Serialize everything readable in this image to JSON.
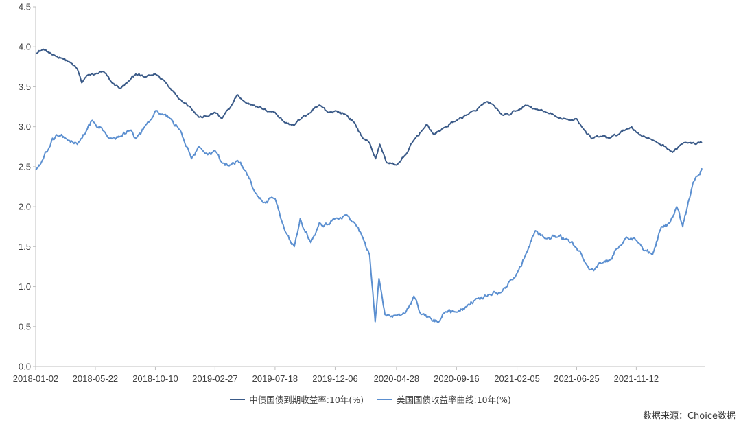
{
  "chart_data": {
    "type": "line",
    "title": "",
    "xlabel": "",
    "ylabel": "",
    "x_tick_labels": [
      "2018-01-02",
      "2018-05-22",
      "2018-10-10",
      "2019-02-27",
      "2019-07-18",
      "2019-12-06",
      "2020-04-28",
      "2020-09-16",
      "2021-02-05",
      "2021-06-25",
      "2021-11-12"
    ],
    "y_tick_labels": [
      "0.0",
      "0.5",
      "1.0",
      "1.5",
      "2.0",
      "2.5",
      "3.0",
      "3.5",
      "4.0",
      "4.5"
    ],
    "ylim": [
      0,
      4.5
    ],
    "x_range": [
      "2018-01-02",
      "2022-04-15"
    ],
    "grid": false,
    "legend_position": "bottom",
    "series": [
      {
        "name": "中债国债到期收益率:10年(%)",
        "color": "#3a5a88",
        "points": [
          [
            "2018-01-02",
            3.92
          ],
          [
            "2018-01-20",
            3.97
          ],
          [
            "2018-02-10",
            3.9
          ],
          [
            "2018-03-05",
            3.86
          ],
          [
            "2018-03-25",
            3.8
          ],
          [
            "2018-04-10",
            3.72
          ],
          [
            "2018-04-20",
            3.55
          ],
          [
            "2018-05-05",
            3.65
          ],
          [
            "2018-05-22",
            3.66
          ],
          [
            "2018-06-10",
            3.69
          ],
          [
            "2018-06-30",
            3.55
          ],
          [
            "2018-07-20",
            3.48
          ],
          [
            "2018-08-05",
            3.55
          ],
          [
            "2018-08-25",
            3.66
          ],
          [
            "2018-09-15",
            3.62
          ],
          [
            "2018-10-10",
            3.66
          ],
          [
            "2018-10-30",
            3.58
          ],
          [
            "2018-11-20",
            3.45
          ],
          [
            "2018-12-10",
            3.33
          ],
          [
            "2018-12-31",
            3.25
          ],
          [
            "2019-01-20",
            3.12
          ],
          [
            "2019-02-10",
            3.13
          ],
          [
            "2019-02-27",
            3.18
          ],
          [
            "2019-03-15",
            3.1
          ],
          [
            "2019-04-05",
            3.25
          ],
          [
            "2019-04-20",
            3.4
          ],
          [
            "2019-05-10",
            3.3
          ],
          [
            "2019-05-30",
            3.27
          ],
          [
            "2019-06-20",
            3.22
          ],
          [
            "2019-07-18",
            3.18
          ],
          [
            "2019-08-10",
            3.05
          ],
          [
            "2019-09-01",
            3.02
          ],
          [
            "2019-09-20",
            3.12
          ],
          [
            "2019-10-10",
            3.18
          ],
          [
            "2019-10-30",
            3.27
          ],
          [
            "2019-11-20",
            3.18
          ],
          [
            "2019-12-06",
            3.2
          ],
          [
            "2020-01-01",
            3.15
          ],
          [
            "2020-01-20",
            3.05
          ],
          [
            "2020-02-10",
            2.85
          ],
          [
            "2020-02-25",
            2.8
          ],
          [
            "2020-03-10",
            2.6
          ],
          [
            "2020-03-20",
            2.78
          ],
          [
            "2020-04-05",
            2.55
          ],
          [
            "2020-04-28",
            2.52
          ],
          [
            "2020-05-20",
            2.65
          ],
          [
            "2020-06-10",
            2.85
          ],
          [
            "2020-07-01",
            2.98
          ],
          [
            "2020-07-10",
            3.02
          ],
          [
            "2020-07-25",
            2.9
          ],
          [
            "2020-08-15",
            2.98
          ],
          [
            "2020-09-16",
            3.08
          ],
          [
            "2020-10-10",
            3.15
          ],
          [
            "2020-11-01",
            3.2
          ],
          [
            "2020-11-20",
            3.3
          ],
          [
            "2020-12-10",
            3.28
          ],
          [
            "2020-12-31",
            3.15
          ],
          [
            "2021-01-20",
            3.15
          ],
          [
            "2021-02-05",
            3.2
          ],
          [
            "2021-02-25",
            3.27
          ],
          [
            "2021-03-20",
            3.22
          ],
          [
            "2021-04-15",
            3.18
          ],
          [
            "2021-05-10",
            3.12
          ],
          [
            "2021-05-30",
            3.1
          ],
          [
            "2021-06-10",
            3.08
          ],
          [
            "2021-06-25",
            3.1
          ],
          [
            "2021-07-10",
            2.98
          ],
          [
            "2021-07-30",
            2.85
          ],
          [
            "2021-08-20",
            2.88
          ],
          [
            "2021-09-10",
            2.86
          ],
          [
            "2021-09-30",
            2.9
          ],
          [
            "2021-10-20",
            2.97
          ],
          [
            "2021-11-01",
            3.0
          ],
          [
            "2021-11-12",
            2.93
          ],
          [
            "2021-12-01",
            2.88
          ],
          [
            "2021-12-25",
            2.82
          ],
          [
            "2022-01-20",
            2.75
          ],
          [
            "2022-02-05",
            2.68
          ],
          [
            "2022-02-25",
            2.78
          ],
          [
            "2022-03-15",
            2.8
          ],
          [
            "2022-04-01",
            2.78
          ],
          [
            "2022-04-15",
            2.8
          ]
        ]
      },
      {
        "name": "美国国债收益率曲线:10年(%)",
        "color": "#5b8fd0",
        "points": [
          [
            "2018-01-02",
            2.46
          ],
          [
            "2018-01-15",
            2.55
          ],
          [
            "2018-02-01",
            2.72
          ],
          [
            "2018-02-20",
            2.9
          ],
          [
            "2018-03-15",
            2.85
          ],
          [
            "2018-04-10",
            2.78
          ],
          [
            "2018-05-01",
            2.95
          ],
          [
            "2018-05-15",
            3.08
          ],
          [
            "2018-05-25",
            3.0
          ],
          [
            "2018-06-10",
            2.95
          ],
          [
            "2018-06-30",
            2.85
          ],
          [
            "2018-07-20",
            2.88
          ],
          [
            "2018-08-10",
            2.95
          ],
          [
            "2018-08-25",
            2.85
          ],
          [
            "2018-09-15",
            3.0
          ],
          [
            "2018-10-10",
            3.2
          ],
          [
            "2018-10-30",
            3.15
          ],
          [
            "2018-11-15",
            3.1
          ],
          [
            "2018-12-01",
            3.0
          ],
          [
            "2018-12-15",
            2.85
          ],
          [
            "2019-01-03",
            2.6
          ],
          [
            "2019-01-20",
            2.75
          ],
          [
            "2019-02-10",
            2.65
          ],
          [
            "2019-02-27",
            2.7
          ],
          [
            "2019-03-15",
            2.55
          ],
          [
            "2019-04-05",
            2.52
          ],
          [
            "2019-04-20",
            2.58
          ],
          [
            "2019-05-10",
            2.45
          ],
          [
            "2019-05-30",
            2.2
          ],
          [
            "2019-06-20",
            2.05
          ],
          [
            "2019-07-18",
            2.1
          ],
          [
            "2019-08-10",
            1.7
          ],
          [
            "2019-09-01",
            1.5
          ],
          [
            "2019-09-15",
            1.85
          ],
          [
            "2019-10-10",
            1.55
          ],
          [
            "2019-10-30",
            1.8
          ],
          [
            "2019-11-20",
            1.78
          ],
          [
            "2019-12-06",
            1.85
          ],
          [
            "2020-01-01",
            1.9
          ],
          [
            "2020-01-20",
            1.8
          ],
          [
            "2020-02-10",
            1.6
          ],
          [
            "2020-02-25",
            1.4
          ],
          [
            "2020-03-09",
            0.56
          ],
          [
            "2020-03-18",
            1.1
          ],
          [
            "2020-04-01",
            0.65
          ],
          [
            "2020-04-28",
            0.64
          ],
          [
            "2020-05-20",
            0.68
          ],
          [
            "2020-06-08",
            0.88
          ],
          [
            "2020-06-25",
            0.65
          ],
          [
            "2020-07-15",
            0.62
          ],
          [
            "2020-08-04",
            0.55
          ],
          [
            "2020-08-20",
            0.68
          ],
          [
            "2020-09-16",
            0.68
          ],
          [
            "2020-10-10",
            0.75
          ],
          [
            "2020-11-01",
            0.85
          ],
          [
            "2020-12-01",
            0.9
          ],
          [
            "2020-12-31",
            0.93
          ],
          [
            "2021-01-20",
            1.08
          ],
          [
            "2021-02-05",
            1.17
          ],
          [
            "2021-02-25",
            1.4
          ],
          [
            "2021-03-20",
            1.7
          ],
          [
            "2021-04-15",
            1.6
          ],
          [
            "2021-05-10",
            1.62
          ],
          [
            "2021-06-01",
            1.6
          ],
          [
            "2021-06-25",
            1.48
          ],
          [
            "2021-07-15",
            1.3
          ],
          [
            "2021-08-04",
            1.2
          ],
          [
            "2021-08-25",
            1.3
          ],
          [
            "2021-09-10",
            1.33
          ],
          [
            "2021-10-01",
            1.48
          ],
          [
            "2021-10-20",
            1.62
          ],
          [
            "2021-11-12",
            1.58
          ],
          [
            "2021-12-01",
            1.45
          ],
          [
            "2021-12-20",
            1.4
          ],
          [
            "2022-01-10",
            1.75
          ],
          [
            "2022-01-30",
            1.8
          ],
          [
            "2022-02-15",
            2.0
          ],
          [
            "2022-03-01",
            1.75
          ],
          [
            "2022-03-10",
            1.95
          ],
          [
            "2022-03-25",
            2.3
          ],
          [
            "2022-04-10",
            2.4
          ],
          [
            "2022-04-15",
            2.48
          ]
        ]
      }
    ]
  },
  "source_note": "数据来源：Choice数据"
}
